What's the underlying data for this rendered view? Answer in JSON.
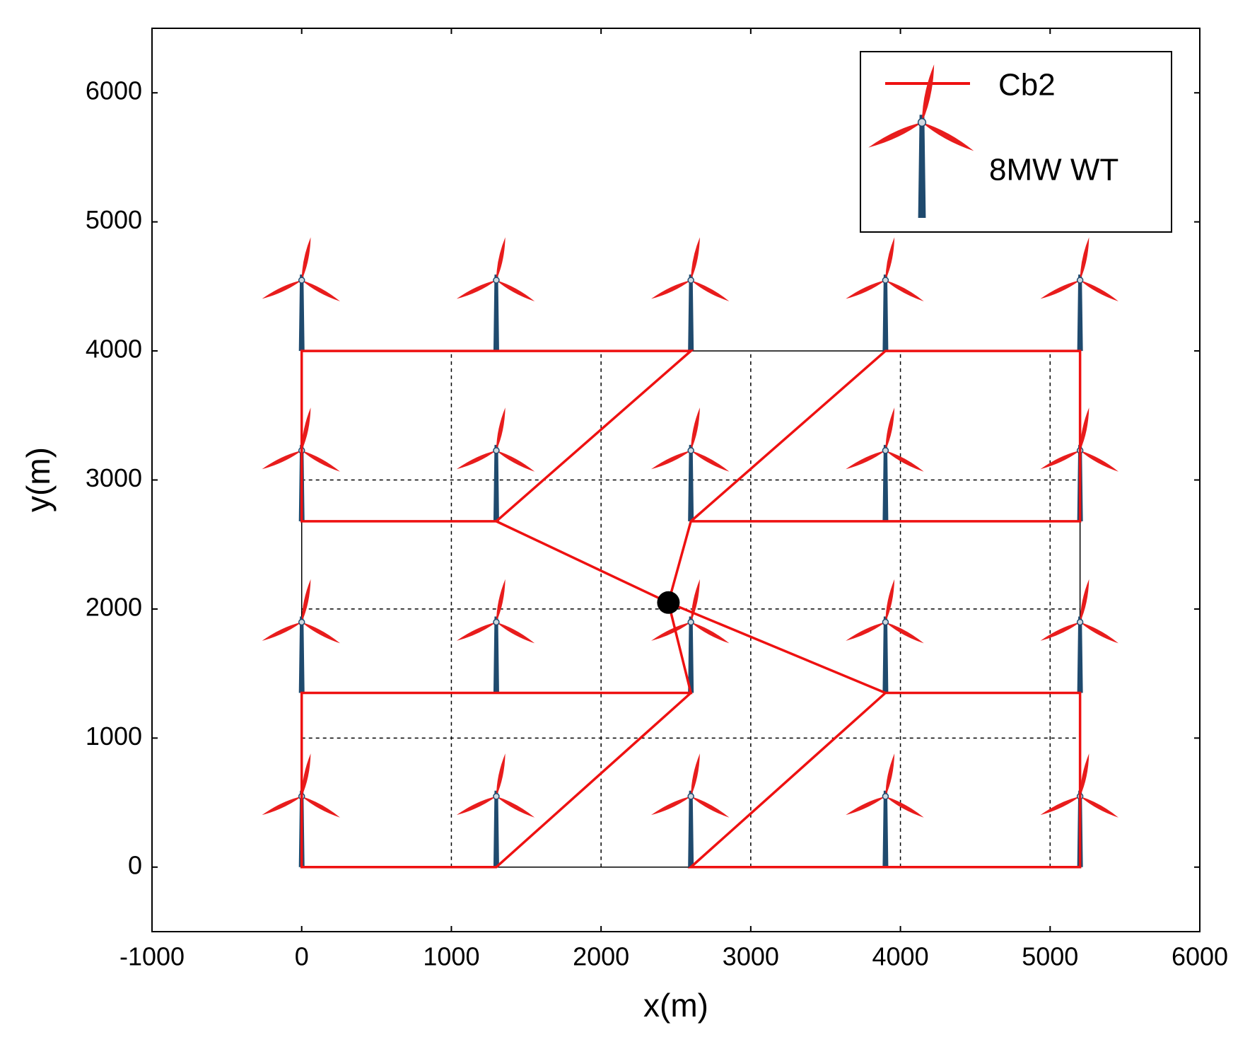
{
  "chart_data": {
    "type": "layout",
    "xlabel": "x(m)",
    "ylabel": "y(m)",
    "xlim": [
      -1000,
      6000
    ],
    "xticks": [
      -1000,
      0,
      1000,
      2000,
      3000,
      4000,
      5000,
      6000
    ],
    "ylim": [
      -500,
      6500
    ],
    "yticks": [
      0,
      1000,
      2000,
      3000,
      4000,
      5000,
      6000
    ],
    "grid": true,
    "legend": "upper right",
    "series": [
      {
        "name": "Cb2",
        "color": "#ee1111",
        "lines": [
          {
            "x": [
              1300,
              0,
              0,
              2600,
              1300,
              2450
            ],
            "y": [
              2680,
              2680,
              4000,
              4000,
              2680,
              2050
            ]
          },
          {
            "x": [
              2450,
              2600,
              3900,
              5200,
              5200,
              2600
            ],
            "y": [
              2050,
              2680,
              4000,
              4000,
              2680,
              2680
            ]
          },
          {
            "x": [
              2450,
              2600,
              0,
              0,
              1300,
              2600
            ],
            "y": [
              2050,
              1350,
              1350,
              0,
              0,
              1350
            ]
          },
          {
            "x": [
              2450,
              3900,
              5200,
              5200,
              2600,
              3900
            ],
            "y": [
              2050,
              1350,
              1350,
              0,
              0,
              1350
            ]
          }
        ]
      }
    ],
    "turbines": {
      "name": "8MW WT",
      "blade_color": "#e81c1c",
      "tower_color": "#1f4a6e",
      "x": [
        0,
        1300,
        2600,
        3900,
        5200,
        0,
        1300,
        2600,
        3900,
        5200,
        0,
        1300,
        2600,
        3900,
        5200,
        0,
        1300,
        2600,
        3900,
        5200
      ],
      "y": [
        0,
        0,
        0,
        0,
        0,
        1350,
        1350,
        1350,
        1350,
        1350,
        2680,
        2680,
        2680,
        2680,
        2680,
        4000,
        4000,
        4000,
        4000,
        4000
      ]
    },
    "substation": {
      "color": "#000000",
      "x": [
        2450
      ],
      "y": [
        2050
      ]
    }
  }
}
